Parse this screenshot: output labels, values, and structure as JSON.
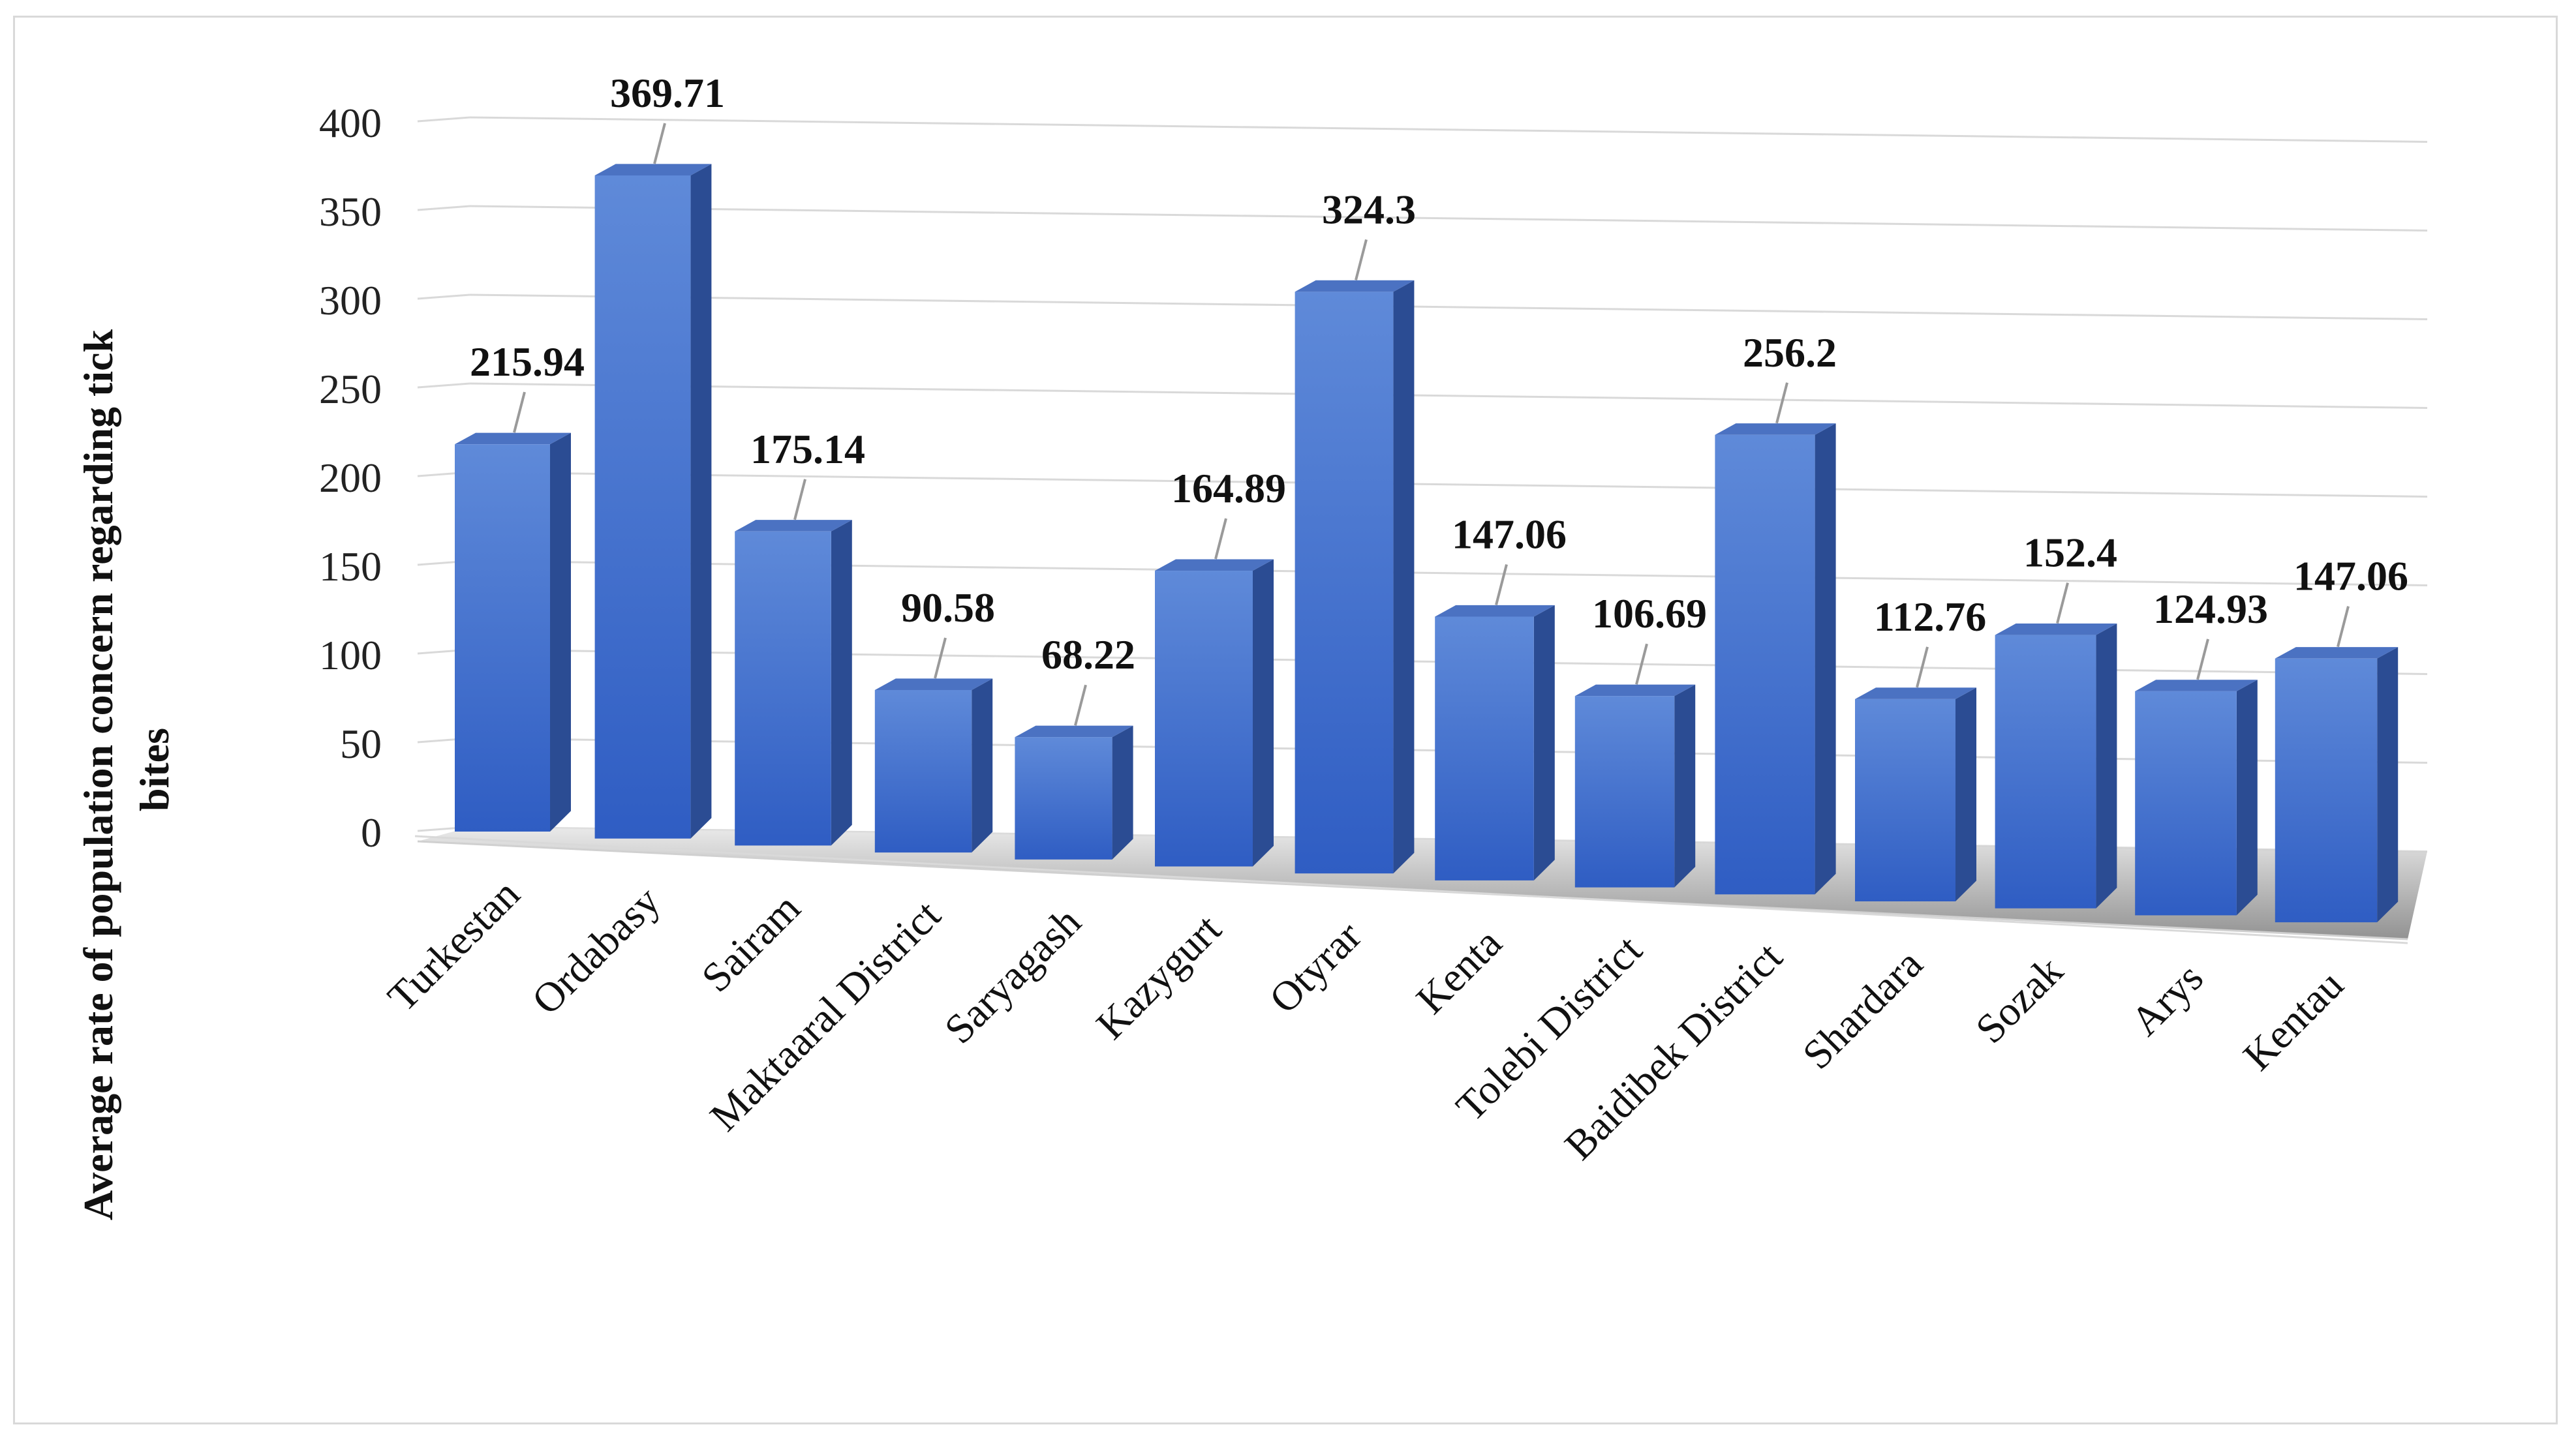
{
  "chart_data": {
    "type": "bar",
    "style": "3d-column",
    "categories": [
      "Turkestan",
      "Ordabasy",
      "Sairam",
      "Maktaaral District",
      "Saryagash",
      "Kazygurt",
      "Otyrar",
      "Kenta",
      "Tolebi District",
      "Baidibek District",
      "Shardara",
      "Sozak",
      "Arys",
      "Kentau"
    ],
    "values": [
      215.94,
      369.71,
      175.14,
      90.58,
      68.22,
      164.89,
      324.3,
      147.06,
      106.69,
      256.2,
      112.76,
      152.4,
      124.93,
      147.06
    ],
    "data_labels": [
      "215.94",
      "369.71",
      "175.14",
      "90.58",
      "68.22",
      "164.89",
      "324.3",
      "147.06",
      "106.69",
      "256.2",
      "112.76",
      "152.4",
      "124.93",
      "147.06"
    ],
    "title": "",
    "xlabel": "",
    "ylabel": [
      "Average rate of population concern regarding tick",
      "bites"
    ],
    "ylim": [
      0,
      400
    ],
    "yticks": [
      "0",
      "50",
      "100",
      "150",
      "200",
      "250",
      "300",
      "350",
      "400"
    ],
    "grid": true,
    "legend": "none",
    "colors": {
      "bar_front_top": "#5b86d8",
      "bar_front_bottom": "#2f5bbf",
      "bar_side": "#2a4a8f",
      "bar_top": "#4b73c4",
      "gridline": "#d9d9d9",
      "floor": "#8c8c8c"
    }
  }
}
